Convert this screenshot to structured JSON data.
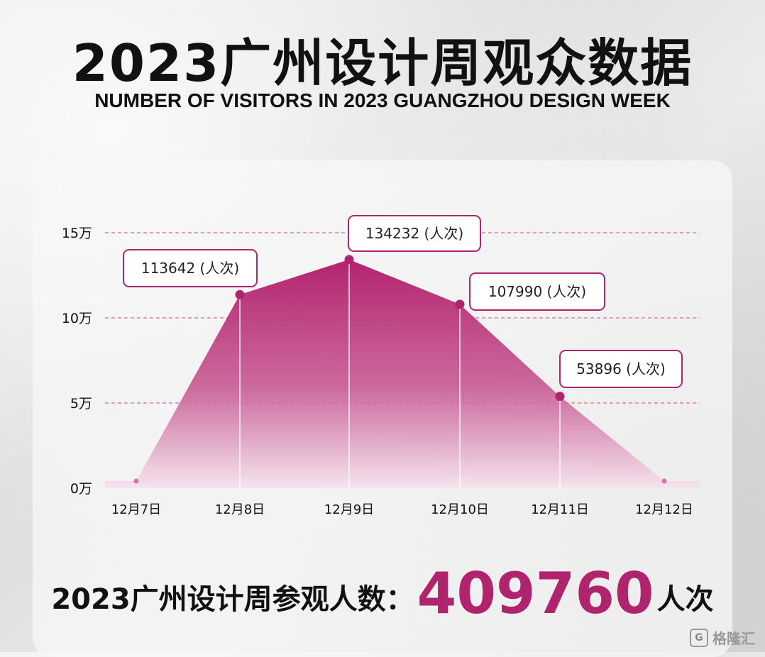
{
  "title": "2023广州设计周观众数据",
  "subtitle": "NUMBER OF VISITORS IN 2023 GUANGZHOU DESIGN WEEK",
  "chart_data": {
    "type": "area",
    "categories": [
      "12月7日",
      "12月8日",
      "12月9日",
      "12月10日",
      "12月11日",
      "12月12日"
    ],
    "values": [
      0,
      113642,
      134232,
      107990,
      53896,
      0
    ],
    "data_labels": [
      "",
      "113642 (人次)",
      "134232 (人次)",
      "107990 (人次)",
      "53896 (人次)",
      ""
    ],
    "y_ticks": [
      "0万",
      "5万",
      "10万",
      "15万"
    ],
    "ylim": [
      0,
      150000
    ],
    "grid": "dashed horizontal",
    "colors": {
      "accent": "#b0246e",
      "area_top": "#b52a75",
      "area_bottom": "#f3dbe8",
      "grid": "#d9659a"
    }
  },
  "total": {
    "label": "2023广州设计周参观人数：",
    "value": "409760",
    "unit": "人次"
  },
  "watermark": {
    "text": "格隆汇",
    "mark": "G"
  }
}
